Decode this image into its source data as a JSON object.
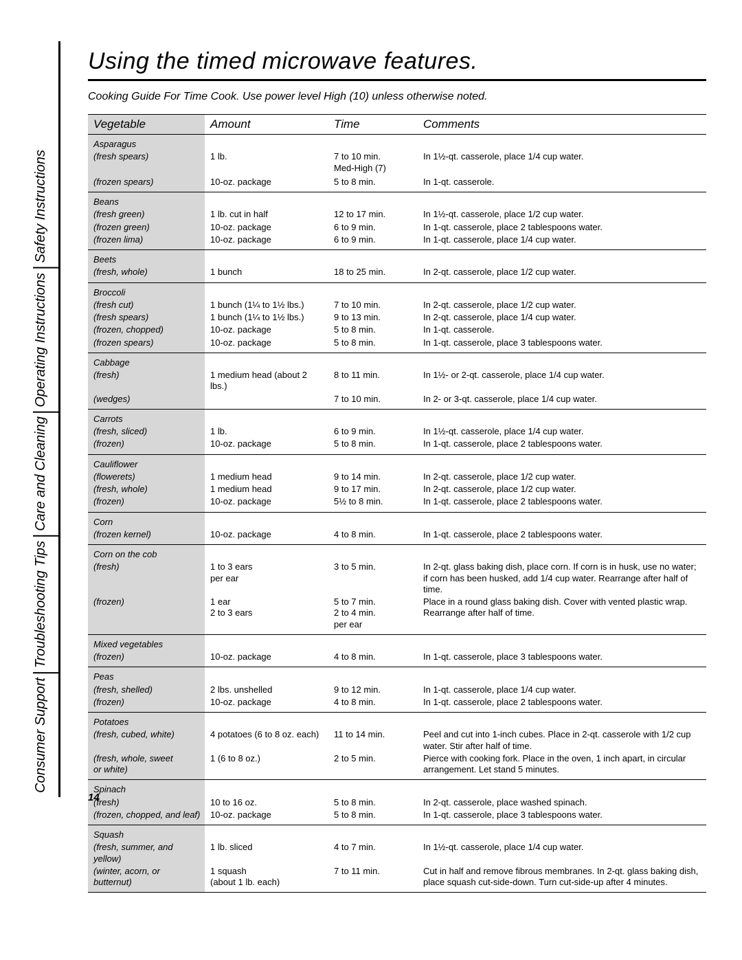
{
  "sidebar": {
    "items": [
      "Safety Instructions",
      "Operating Instructions",
      "Care and Cleaning",
      "Troubleshooting Tips",
      "Consumer Support"
    ]
  },
  "title": "Using the timed microwave features.",
  "subtitle": "Cooking Guide For Time Cook. Use power level High (10) unless otherwise noted.",
  "headers": {
    "vegetable": "Vegetable",
    "amount": "Amount",
    "time": "Time",
    "comments": "Comments"
  },
  "rows": [
    {
      "veg": "Asparagus",
      "head": true,
      "gf": true
    },
    {
      "veg": "(fresh spears)",
      "amount": "1 lb.",
      "time": "7 to 10 min.\nMed-High (7)",
      "comments": "In 1½-qt. casserole, place 1/4 cup water."
    },
    {
      "veg": "",
      "amount": "",
      "time": "",
      "comments": ""
    },
    {
      "veg": "(frozen spears)",
      "amount": "10-oz. package",
      "time": "5 to 8 min.",
      "comments": "In 1-qt. casserole.",
      "gl": true
    },
    {
      "veg": "Beans",
      "head": true,
      "gf": true
    },
    {
      "veg": "(fresh green)",
      "amount": "1 lb. cut in half",
      "time": "12 to 17 min.",
      "comments": "In 1½-qt. casserole, place 1/2 cup water."
    },
    {
      "veg": "(frozen green)",
      "amount": "10-oz. package",
      "time": "6 to 9 min.",
      "comments": "In 1-qt. casserole, place 2 tablespoons water."
    },
    {
      "veg": "(frozen lima)",
      "amount": "10-oz. package",
      "time": "6 to 9 min.",
      "comments": "In 1-qt. casserole, place 1/4 cup water.",
      "gl": true
    },
    {
      "veg": "Beets",
      "head": true,
      "gf": true
    },
    {
      "veg": "(fresh, whole)",
      "amount": "1 bunch",
      "time": "18 to 25 min.",
      "comments": "In 2-qt. casserole, place 1/2 cup water.",
      "gl": true
    },
    {
      "veg": "Broccoli",
      "head": true,
      "gf": true
    },
    {
      "veg": "(fresh cut)",
      "amount": "1 bunch (1¼ to 1½ lbs.)",
      "time": "7 to 10 min.",
      "comments": "In 2-qt. casserole, place 1/2 cup water."
    },
    {
      "veg": "(fresh spears)",
      "amount": "1 bunch (1¼ to 1½ lbs.)",
      "time": "9 to 13 min.",
      "comments": "In 2-qt. casserole, place 1/4 cup water."
    },
    {
      "veg": "(frozen, chopped)",
      "amount": "10-oz. package",
      "time": "5 to 8 min.",
      "comments": "In 1-qt. casserole."
    },
    {
      "veg": "(frozen spears)",
      "amount": "10-oz. package",
      "time": "5 to 8 min.",
      "comments": "In 1-qt. casserole, place 3 tablespoons water.",
      "gl": true
    },
    {
      "veg": "Cabbage",
      "head": true,
      "gf": true
    },
    {
      "veg": "(fresh)",
      "amount": "1 medium head (about 2 lbs.)",
      "time": "8 to 11 min.",
      "comments": "In 1½- or 2-qt. casserole, place 1/4 cup water."
    },
    {
      "veg": "(wedges)",
      "amount": "",
      "time": "7 to 10 min.",
      "comments": "In 2- or 3-qt. casserole, place 1/4 cup water.",
      "gl": true
    },
    {
      "veg": "Carrots",
      "head": true,
      "gf": true
    },
    {
      "veg": "(fresh, sliced)",
      "amount": "1 lb.",
      "time": "6 to 9 min.",
      "comments": "In 1½-qt. casserole, place 1/4 cup water."
    },
    {
      "veg": "(frozen)",
      "amount": "10-oz. package",
      "time": "5 to 8 min.",
      "comments": "In 1-qt. casserole, place 2 tablespoons water.",
      "gl": true
    },
    {
      "veg": "Cauliflower",
      "head": true,
      "gf": true
    },
    {
      "veg": "(flowerets)",
      "amount": "1 medium head",
      "time": "9 to 14 min.",
      "comments": "In 2-qt. casserole, place 1/2 cup water."
    },
    {
      "veg": "(fresh, whole)",
      "amount": "1 medium head",
      "time": "9 to 17 min.",
      "comments": "In 2-qt. casserole, place 1/2 cup water."
    },
    {
      "veg": "(frozen)",
      "amount": "10-oz. package",
      "time": "5½ to 8 min.",
      "comments": "In 1-qt. casserole, place 2 tablespoons water.",
      "gl": true
    },
    {
      "veg": "Corn",
      "head": true,
      "gf": true
    },
    {
      "veg": "(frozen kernel)",
      "amount": "10-oz. package",
      "time": "4 to 8 min.",
      "comments": "In 1-qt. casserole, place 2 tablespoons water.",
      "gl": true
    },
    {
      "veg": "Corn on the cob",
      "head": true,
      "gf": true
    },
    {
      "veg": "(fresh)",
      "amount": "1 to 3 ears\nper ear",
      "time": "3 to 5 min.",
      "comments": "In 2-qt. glass baking dish, place corn. If corn is in husk, use no water; if corn has been husked, add 1/4 cup water. Rearrange after half of time."
    },
    {
      "veg": "(frozen)",
      "amount": "1 ear\n2 to 3 ears",
      "time": "5 to 7 min.\n2 to 4 min.\nper ear",
      "comments": "Place in a round glass baking dish. Cover with vented plastic wrap. Rearrange after half of time.",
      "gl": true
    },
    {
      "veg": "Mixed vegetables",
      "head": true,
      "gf": true
    },
    {
      "veg": "(frozen)",
      "amount": "10-oz. package",
      "time": "4 to 8 min.",
      "comments": "In 1-qt. casserole, place 3 tablespoons water.",
      "gl": true
    },
    {
      "veg": "Peas",
      "head": true,
      "gf": true
    },
    {
      "veg": "(fresh, shelled)",
      "amount": "2 lbs. unshelled",
      "time": "9 to 12 min.",
      "comments": "In 1-qt. casserole, place 1/4 cup water."
    },
    {
      "veg": "(frozen)",
      "amount": "10-oz. package",
      "time": "4 to 8 min.",
      "comments": "In 1-qt. casserole, place 2 tablespoons water.",
      "gl": true
    },
    {
      "veg": "Potatoes",
      "head": true,
      "gf": true
    },
    {
      "veg": "(fresh, cubed, white)",
      "amount": "4 potatoes (6 to 8 oz. each)",
      "time": "11 to 14 min.",
      "comments": "Peel and cut into 1-inch cubes. Place in 2-qt. casserole with 1/2 cup water. Stir after half of time."
    },
    {
      "veg": "(fresh, whole, sweet\nor white)",
      "amount": "1 (6 to 8 oz.)",
      "time": "2 to 5 min.",
      "comments": "Pierce with cooking fork. Place in the oven, 1 inch apart, in circular arrangement. Let stand 5 minutes.",
      "gl": true
    },
    {
      "veg": "Spinach",
      "head": true,
      "gf": true
    },
    {
      "veg": "(fresh)",
      "amount": "10 to 16 oz.",
      "time": "5 to 8 min.",
      "comments": "In 2-qt. casserole, place washed spinach."
    },
    {
      "veg": "(frozen, chopped, and leaf)",
      "amount": "10-oz. package",
      "time": "5 to 8 min.",
      "comments": "In 1-qt. casserole, place 3 tablespoons water.",
      "gl": true
    },
    {
      "veg": "Squash",
      "head": true,
      "gf": true
    },
    {
      "veg": "(fresh, summer, and yellow)",
      "amount": "1 lb. sliced",
      "time": "4 to 7 min.",
      "comments": "In 1½-qt. casserole, place 1/4 cup water."
    },
    {
      "veg": "(winter, acorn, or butternut)",
      "amount": "1 squash\n(about 1 lb. each)",
      "time": "7 to 11 min.",
      "comments": "Cut in half and remove fibrous membranes. In 2-qt. glass baking dish, place squash cut-side-down. Turn cut-side-up after 4 minutes.",
      "gl": true
    }
  ],
  "pagenum": "14",
  "colors": {
    "sidebar_shade": "#d7d7d7",
    "rule": "#000000",
    "text": "#000000",
    "bg": "#ffffff"
  }
}
